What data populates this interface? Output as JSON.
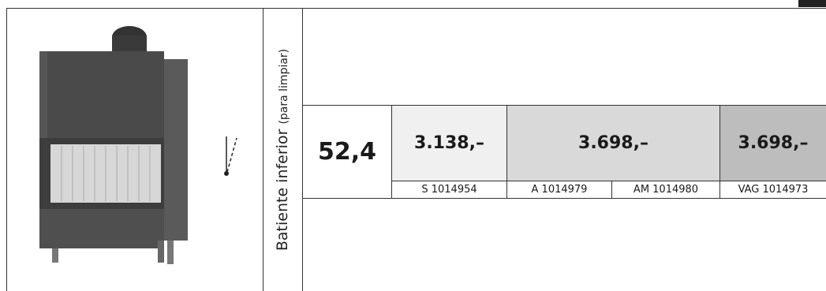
{
  "feature": {
    "title": "Batiente inferior",
    "note": "(para limpiar)"
  },
  "table": {
    "size": "52,4",
    "prices": [
      "3.138,–",
      "3.698,–",
      "3.698,–"
    ],
    "codes": [
      "S 1014954",
      "A 1014979",
      "AM 1014980",
      "VAG 1014973"
    ]
  }
}
